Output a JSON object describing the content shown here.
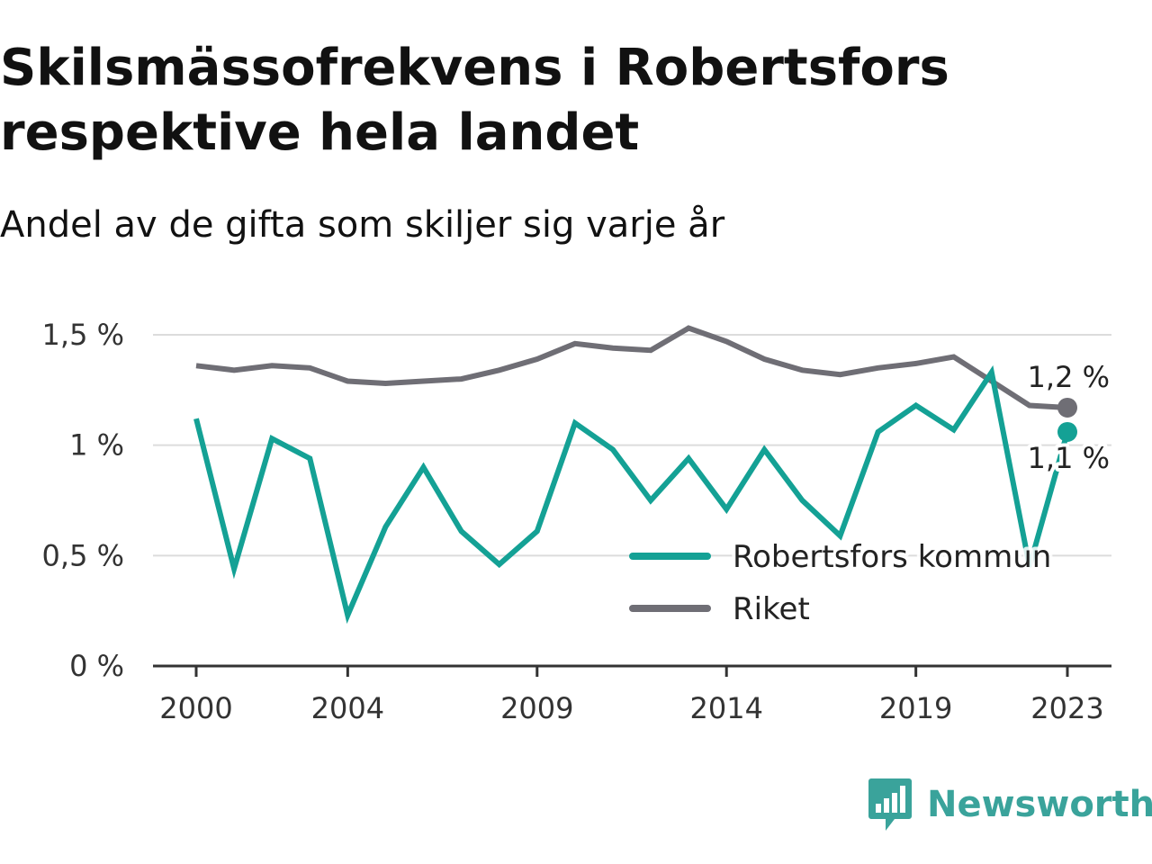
{
  "header": {
    "title": "Skilsmässofrekvens i Robertsfors respektive hela landet",
    "subtitle": "Andel av de gifta som skiljer sig varje år"
  },
  "brand": {
    "name": "Newsworthy",
    "icon": "newsworthy-logo-icon",
    "color": "#3aa39b"
  },
  "chart_data": {
    "type": "line",
    "x": [
      2000,
      2001,
      2002,
      2003,
      2004,
      2005,
      2006,
      2007,
      2008,
      2009,
      2010,
      2011,
      2012,
      2013,
      2014,
      2015,
      2016,
      2017,
      2018,
      2019,
      2020,
      2021,
      2022,
      2023
    ],
    "x_ticks": [
      2000,
      2004,
      2009,
      2014,
      2019,
      2023
    ],
    "y_ticks": [
      {
        "value": 0,
        "label": "0 %"
      },
      {
        "value": 0.5,
        "label": "0,5 %"
      },
      {
        "value": 1.0,
        "label": "1 %"
      },
      {
        "value": 1.5,
        "label": "1,5 %"
      }
    ],
    "ylim": [
      0,
      1.5
    ],
    "grid": true,
    "legend_position": "bottom-right",
    "series": [
      {
        "name": "Robertsfors kommun",
        "color": "#14a195",
        "values": [
          1.12,
          0.44,
          1.03,
          0.94,
          0.23,
          0.63,
          0.9,
          0.61,
          0.46,
          0.61,
          1.1,
          0.98,
          0.75,
          0.94,
          0.71,
          0.98,
          0.75,
          0.59,
          1.06,
          1.18,
          1.07,
          1.33,
          0.45,
          1.06
        ],
        "end_label": "1,1 %"
      },
      {
        "name": "Riket",
        "color": "#6f6e75",
        "values": [
          1.36,
          1.34,
          1.36,
          1.35,
          1.29,
          1.28,
          1.29,
          1.3,
          1.34,
          1.39,
          1.46,
          1.44,
          1.43,
          1.53,
          1.47,
          1.39,
          1.34,
          1.32,
          1.35,
          1.37,
          1.4,
          1.29,
          1.18,
          1.17
        ],
        "end_label": "1,2 %"
      }
    ]
  }
}
